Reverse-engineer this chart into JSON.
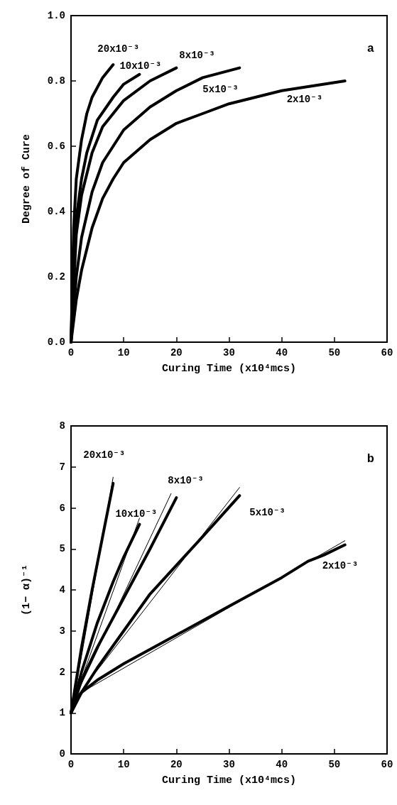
{
  "chart_data": [
    {
      "type": "line",
      "xlabel": "Curing Time (x10⁴mcs)",
      "ylabel": "Degree of Cure",
      "annotations": [
        "a"
      ],
      "xlim": [
        0,
        60
      ],
      "xticks": [
        0,
        10,
        20,
        30,
        40,
        50,
        60
      ],
      "ylim": [
        0,
        1
      ],
      "yticks": [
        {
          "value": 0,
          "label": "0.0"
        },
        0.2,
        0.4,
        0.6,
        0.8,
        {
          "value": 1,
          "label": "1.0"
        }
      ],
      "grid": false,
      "marker": "none",
      "line_style": "solid",
      "series": [
        {
          "name": "20x10⁻³",
          "color": "#000000",
          "x": [
            0,
            0.5,
            1,
            2,
            3,
            4,
            6,
            8
          ],
          "values": [
            0,
            0.35,
            0.5,
            0.62,
            0.7,
            0.75,
            0.81,
            0.85
          ]
        },
        {
          "name": "10x10⁻³",
          "color": "#000000",
          "x": [
            0,
            0.5,
            1,
            2,
            3,
            5,
            8,
            10,
            13
          ],
          "values": [
            0,
            0.25,
            0.38,
            0.5,
            0.58,
            0.68,
            0.75,
            0.79,
            0.82
          ]
        },
        {
          "name": "8x10⁻³",
          "color": "#000000",
          "x": [
            0,
            1,
            2,
            4,
            6,
            10,
            15,
            20
          ],
          "values": [
            0,
            0.33,
            0.45,
            0.58,
            0.66,
            0.74,
            0.8,
            0.84
          ]
        },
        {
          "name": "5x10⁻³",
          "color": "#000000",
          "x": [
            0,
            1,
            2,
            4,
            6,
            10,
            15,
            20,
            25,
            32
          ],
          "values": [
            0,
            0.2,
            0.32,
            0.46,
            0.55,
            0.65,
            0.72,
            0.77,
            0.81,
            0.84
          ]
        },
        {
          "name": "2x10⁻³",
          "color": "#000000",
          "x": [
            0,
            1,
            2,
            4,
            6,
            8,
            10,
            15,
            20,
            25,
            30,
            40,
            52
          ],
          "values": [
            0,
            0.13,
            0.22,
            0.35,
            0.44,
            0.5,
            0.55,
            0.62,
            0.67,
            0.7,
            0.73,
            0.77,
            0.8
          ]
        }
      ]
    },
    {
      "type": "line",
      "xlabel": "Curing Time (x10⁴mcs)",
      "ylabel": "(1− α)⁻¹",
      "annotations": [
        "b"
      ],
      "xlim": [
        0,
        60
      ],
      "xticks": [
        0,
        10,
        20,
        30,
        40,
        50,
        60
      ],
      "ylim": [
        0,
        8
      ],
      "yticks": [
        0,
        1,
        2,
        3,
        4,
        5,
        6,
        7,
        8
      ],
      "grid": false,
      "marker": "none",
      "line_style": "solid",
      "series": [
        {
          "name": "20x10⁻³",
          "color": "#000000",
          "x": [
            0,
            2,
            4,
            6,
            8
          ],
          "values": [
            1,
            2.6,
            4,
            5.3,
            6.6
          ]
        },
        {
          "name": "10x10⁻³",
          "color": "#000000",
          "x": [
            0,
            2,
            5,
            8,
            10,
            13
          ],
          "values": [
            1,
            2,
            3.2,
            4.2,
            4.8,
            5.6
          ]
        },
        {
          "name": "8x10⁻³",
          "color": "#000000",
          "x": [
            0,
            2,
            5,
            10,
            15,
            20
          ],
          "values": [
            1,
            1.8,
            2.6,
            3.8,
            5,
            6.25
          ]
        },
        {
          "name": "5x10⁻³",
          "color": "#000000",
          "x": [
            0,
            2,
            5,
            10,
            15,
            20,
            25,
            32
          ],
          "values": [
            1,
            1.5,
            2.1,
            3,
            3.9,
            4.6,
            5.3,
            6.3
          ]
        },
        {
          "name": "2x10⁻³",
          "color": "#000000",
          "x": [
            0,
            1,
            2,
            5,
            10,
            20,
            30,
            40,
            45,
            48,
            52
          ],
          "values": [
            1,
            1.3,
            1.5,
            1.8,
            2.2,
            2.9,
            3.6,
            4.3,
            4.7,
            4.85,
            5.1
          ]
        },
        {
          "color": "#000000",
          "x": [
            0.5,
            8
          ],
          "values": [
            1.3,
            6.75
          ]
        },
        {
          "color": "#000000",
          "x": [
            0.5,
            13
          ],
          "values": [
            1.3,
            5.75
          ]
        },
        {
          "color": "#000000",
          "x": [
            0.5,
            19
          ],
          "values": [
            1.3,
            6.35
          ]
        },
        {
          "color": "#000000",
          "x": [
            0.5,
            32
          ],
          "values": [
            1.3,
            6.5
          ]
        },
        {
          "color": "#000000",
          "x": [
            2,
            52
          ],
          "values": [
            1.5,
            5.2
          ]
        }
      ]
    }
  ]
}
